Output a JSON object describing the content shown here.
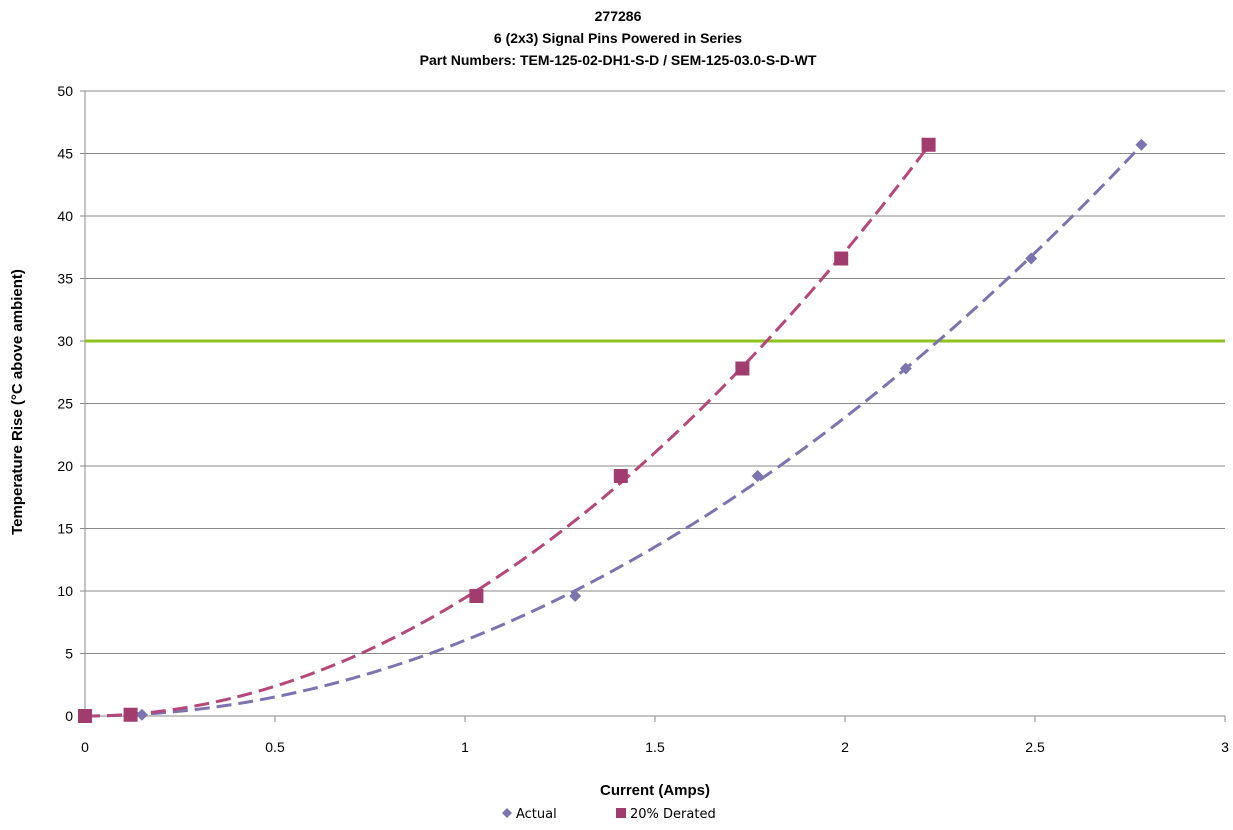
{
  "chart_data": {
    "type": "scatter",
    "title_lines": [
      "277286",
      "6 (2x3) Signal Pins Powered in Series",
      "Part Numbers: TEM-125-02-DH1-S-D / SEM-125-03.0-S-D-WT"
    ],
    "xlabel": "Current (Amps)",
    "ylabel": "Temperature Rise (°C above ambient)",
    "xlim": [
      0,
      3
    ],
    "ylim": [
      0,
      50
    ],
    "x_ticks": [
      0,
      0.5,
      1,
      1.5,
      2,
      2.5,
      3
    ],
    "x_tick_labels": [
      "0",
      "0.5",
      "1",
      "1.5",
      "2",
      "2.5",
      "3"
    ],
    "y_ticks": [
      0,
      5,
      10,
      15,
      20,
      25,
      30,
      35,
      40,
      45,
      50
    ],
    "y_tick_labels": [
      "0",
      "5",
      "10",
      "15",
      "20",
      "25",
      "30",
      "35",
      "40",
      "45",
      "50"
    ],
    "grid": "horizontal",
    "legend_position": "bottom",
    "series": [
      {
        "name": "Actual",
        "marker": "diamond",
        "color": "#7B74B0",
        "trend_color": "#7B74B0",
        "x": [
          0,
          0.15,
          1.29,
          1.77,
          2.16,
          2.49,
          2.78
        ],
        "y": [
          0,
          0.1,
          9.6,
          19.2,
          27.8,
          36.6,
          45.7
        ]
      },
      {
        "name": "20% Derated",
        "marker": "square",
        "color": "#A03C6E",
        "trend_color": "#B5477A",
        "x": [
          0,
          0.12,
          1.03,
          1.41,
          1.73,
          1.99,
          2.22
        ],
        "y": [
          0,
          0.1,
          9.6,
          19.2,
          27.8,
          36.6,
          45.7
        ]
      }
    ],
    "reference_line": {
      "y": 30,
      "color": "#8DC21F"
    }
  }
}
